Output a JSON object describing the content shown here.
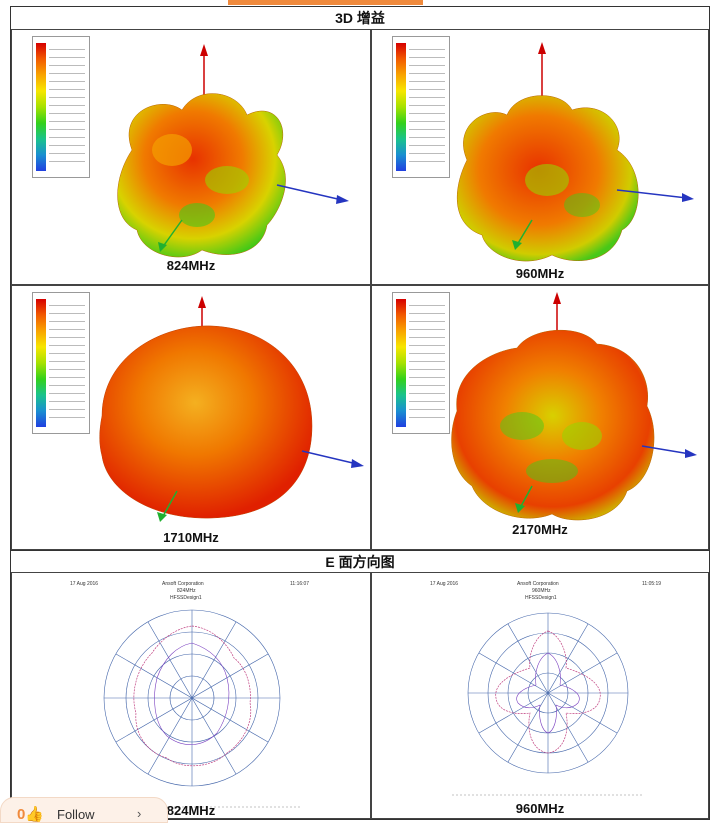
{
  "sections": {
    "gain_title": "3D 增益",
    "pattern_title": "E 面方向图"
  },
  "gain_plots": [
    {
      "label": "824MHz"
    },
    {
      "label": "960MHz"
    },
    {
      "label": "1710MHz"
    },
    {
      "label": "2170MHz"
    }
  ],
  "pattern_plots": [
    {
      "label": "824MHz",
      "date": "17 Aug 2016",
      "company": "Ansoft Corporation",
      "freq": "824MHz",
      "design": "HFSSDesign1",
      "time": "11:16:07"
    },
    {
      "label": "960MHz",
      "date": "17 Aug 2016",
      "company": "Ansoft Corporation",
      "freq": "960MHz",
      "design": "HFSSDesign1",
      "time": "11:05:19"
    }
  ],
  "follow_button": {
    "label": "Follow",
    "chevron": "›"
  },
  "colors": {
    "accent": "#f08a3c"
  }
}
